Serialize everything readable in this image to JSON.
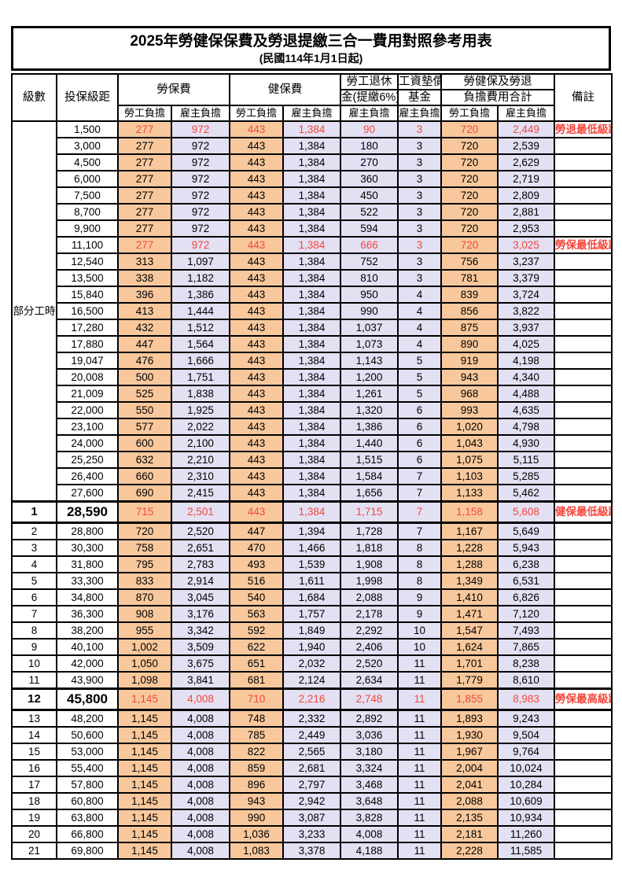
{
  "title": {
    "main": "2025年勞健保保費及勞退提繳三合一費用對照參考用表",
    "sub": "(民國114年1月1日起)"
  },
  "colors": {
    "employee_bg": "#f8c89c",
    "employer_bg": "#e2e0f2",
    "highlight_red": "#f4473c",
    "border": "#000000"
  },
  "table": {
    "headers": {
      "level": "級數",
      "bracket": "投保級距",
      "labor_insurance": "勞保費",
      "health_insurance": "健保費",
      "pension_line1": "勞工退休",
      "pension_line2": "金(提繳6%)",
      "wage_fund_line1": "工資墊償",
      "wage_fund_line2": "基金",
      "total_line1": "勞健保及勞退",
      "total_line2": "負擔費用合計",
      "remark": "備註",
      "employee_label": "勞工負擔",
      "employer_label": "雇主負擔"
    },
    "part_time_label": "部分工時",
    "part_time_rowspan": 23,
    "rows": [
      {
        "level": "",
        "bracket": "1,500",
        "cells": [
          "277",
          "972",
          "443",
          "1,384",
          "90",
          "3",
          "720",
          "2,449"
        ],
        "remark": "勞退最低級距",
        "hl": true
      },
      {
        "level": "",
        "bracket": "3,000",
        "cells": [
          "277",
          "972",
          "443",
          "1,384",
          "180",
          "3",
          "720",
          "2,539"
        ],
        "remark": ""
      },
      {
        "level": "",
        "bracket": "4,500",
        "cells": [
          "277",
          "972",
          "443",
          "1,384",
          "270",
          "3",
          "720",
          "2,629"
        ],
        "remark": ""
      },
      {
        "level": "",
        "bracket": "6,000",
        "cells": [
          "277",
          "972",
          "443",
          "1,384",
          "360",
          "3",
          "720",
          "2,719"
        ],
        "remark": ""
      },
      {
        "level": "",
        "bracket": "7,500",
        "cells": [
          "277",
          "972",
          "443",
          "1,384",
          "450",
          "3",
          "720",
          "2,809"
        ],
        "remark": ""
      },
      {
        "level": "",
        "bracket": "8,700",
        "cells": [
          "277",
          "972",
          "443",
          "1,384",
          "522",
          "3",
          "720",
          "2,881"
        ],
        "remark": ""
      },
      {
        "level": "",
        "bracket": "9,900",
        "cells": [
          "277",
          "972",
          "443",
          "1,384",
          "594",
          "3",
          "720",
          "2,953"
        ],
        "remark": ""
      },
      {
        "level": "",
        "bracket": "11,100",
        "cells": [
          "277",
          "972",
          "443",
          "1,384",
          "666",
          "3",
          "720",
          "3,025"
        ],
        "remark": "勞保最低級距",
        "hl": true
      },
      {
        "level": "",
        "bracket": "12,540",
        "cells": [
          "313",
          "1,097",
          "443",
          "1,384",
          "752",
          "3",
          "756",
          "3,237"
        ],
        "remark": ""
      },
      {
        "level": "",
        "bracket": "13,500",
        "cells": [
          "338",
          "1,182",
          "443",
          "1,384",
          "810",
          "3",
          "781",
          "3,379"
        ],
        "remark": ""
      },
      {
        "level": "",
        "bracket": "15,840",
        "cells": [
          "396",
          "1,386",
          "443",
          "1,384",
          "950",
          "4",
          "839",
          "3,724"
        ],
        "remark": ""
      },
      {
        "level": "",
        "bracket": "16,500",
        "cells": [
          "413",
          "1,444",
          "443",
          "1,384",
          "990",
          "4",
          "856",
          "3,822"
        ],
        "remark": ""
      },
      {
        "level": "",
        "bracket": "17,280",
        "cells": [
          "432",
          "1,512",
          "443",
          "1,384",
          "1,037",
          "4",
          "875",
          "3,937"
        ],
        "remark": ""
      },
      {
        "level": "",
        "bracket": "17,880",
        "cells": [
          "447",
          "1,564",
          "443",
          "1,384",
          "1,073",
          "4",
          "890",
          "4,025"
        ],
        "remark": ""
      },
      {
        "level": "",
        "bracket": "19,047",
        "cells": [
          "476",
          "1,666",
          "443",
          "1,384",
          "1,143",
          "5",
          "919",
          "4,198"
        ],
        "remark": ""
      },
      {
        "level": "",
        "bracket": "20,008",
        "cells": [
          "500",
          "1,751",
          "443",
          "1,384",
          "1,200",
          "5",
          "943",
          "4,340"
        ],
        "remark": ""
      },
      {
        "level": "",
        "bracket": "21,009",
        "cells": [
          "525",
          "1,838",
          "443",
          "1,384",
          "1,261",
          "5",
          "968",
          "4,488"
        ],
        "remark": ""
      },
      {
        "level": "",
        "bracket": "22,000",
        "cells": [
          "550",
          "1,925",
          "443",
          "1,384",
          "1,320",
          "6",
          "993",
          "4,635"
        ],
        "remark": ""
      },
      {
        "level": "",
        "bracket": "23,100",
        "cells": [
          "577",
          "2,022",
          "443",
          "1,384",
          "1,386",
          "6",
          "1,020",
          "4,798"
        ],
        "remark": ""
      },
      {
        "level": "",
        "bracket": "24,000",
        "cells": [
          "600",
          "2,100",
          "443",
          "1,384",
          "1,440",
          "6",
          "1,043",
          "4,930"
        ],
        "remark": ""
      },
      {
        "level": "",
        "bracket": "25,250",
        "cells": [
          "632",
          "2,210",
          "443",
          "1,384",
          "1,515",
          "6",
          "1,075",
          "5,115"
        ],
        "remark": ""
      },
      {
        "level": "",
        "bracket": "26,400",
        "cells": [
          "660",
          "2,310",
          "443",
          "1,384",
          "1,584",
          "7",
          "1,103",
          "5,285"
        ],
        "remark": ""
      },
      {
        "level": "",
        "bracket": "27,600",
        "cells": [
          "690",
          "2,415",
          "443",
          "1,384",
          "1,656",
          "7",
          "1,133",
          "5,462"
        ],
        "remark": ""
      },
      {
        "level": "1",
        "bracket": "28,590",
        "cells": [
          "715",
          "2,501",
          "443",
          "1,384",
          "1,715",
          "7",
          "1,158",
          "5,608"
        ],
        "remark": "健保最低級距",
        "hl": true,
        "key": true
      },
      {
        "level": "2",
        "bracket": "28,800",
        "cells": [
          "720",
          "2,520",
          "447",
          "1,394",
          "1,728",
          "7",
          "1,167",
          "5,649"
        ],
        "remark": ""
      },
      {
        "level": "3",
        "bracket": "30,300",
        "cells": [
          "758",
          "2,651",
          "470",
          "1,466",
          "1,818",
          "8",
          "1,228",
          "5,943"
        ],
        "remark": ""
      },
      {
        "level": "4",
        "bracket": "31,800",
        "cells": [
          "795",
          "2,783",
          "493",
          "1,539",
          "1,908",
          "8",
          "1,288",
          "6,238"
        ],
        "remark": ""
      },
      {
        "level": "5",
        "bracket": "33,300",
        "cells": [
          "833",
          "2,914",
          "516",
          "1,611",
          "1,998",
          "8",
          "1,349",
          "6,531"
        ],
        "remark": ""
      },
      {
        "level": "6",
        "bracket": "34,800",
        "cells": [
          "870",
          "3,045",
          "540",
          "1,684",
          "2,088",
          "9",
          "1,410",
          "6,826"
        ],
        "remark": ""
      },
      {
        "level": "7",
        "bracket": "36,300",
        "cells": [
          "908",
          "3,176",
          "563",
          "1,757",
          "2,178",
          "9",
          "1,471",
          "7,120"
        ],
        "remark": ""
      },
      {
        "level": "8",
        "bracket": "38,200",
        "cells": [
          "955",
          "3,342",
          "592",
          "1,849",
          "2,292",
          "10",
          "1,547",
          "7,493"
        ],
        "remark": ""
      },
      {
        "level": "9",
        "bracket": "40,100",
        "cells": [
          "1,002",
          "3,509",
          "622",
          "1,940",
          "2,406",
          "10",
          "1,624",
          "7,865"
        ],
        "remark": ""
      },
      {
        "level": "10",
        "bracket": "42,000",
        "cells": [
          "1,050",
          "3,675",
          "651",
          "2,032",
          "2,520",
          "11",
          "1,701",
          "8,238"
        ],
        "remark": ""
      },
      {
        "level": "11",
        "bracket": "43,900",
        "cells": [
          "1,098",
          "3,841",
          "681",
          "2,124",
          "2,634",
          "11",
          "1,779",
          "8,610"
        ],
        "remark": ""
      },
      {
        "level": "12",
        "bracket": "45,800",
        "cells": [
          "1,145",
          "4,008",
          "710",
          "2,216",
          "2,748",
          "11",
          "1,855",
          "8,983"
        ],
        "remark": "勞保最高級距",
        "hl": true,
        "key": true
      },
      {
        "level": "13",
        "bracket": "48,200",
        "cells": [
          "1,145",
          "4,008",
          "748",
          "2,332",
          "2,892",
          "11",
          "1,893",
          "9,243"
        ],
        "remark": ""
      },
      {
        "level": "14",
        "bracket": "50,600",
        "cells": [
          "1,145",
          "4,008",
          "785",
          "2,449",
          "3,036",
          "11",
          "1,930",
          "9,504"
        ],
        "remark": ""
      },
      {
        "level": "15",
        "bracket": "53,000",
        "cells": [
          "1,145",
          "4,008",
          "822",
          "2,565",
          "3,180",
          "11",
          "1,967",
          "9,764"
        ],
        "remark": ""
      },
      {
        "level": "16",
        "bracket": "55,400",
        "cells": [
          "1,145",
          "4,008",
          "859",
          "2,681",
          "3,324",
          "11",
          "2,004",
          "10,024"
        ],
        "remark": ""
      },
      {
        "level": "17",
        "bracket": "57,800",
        "cells": [
          "1,145",
          "4,008",
          "896",
          "2,797",
          "3,468",
          "11",
          "2,041",
          "10,284"
        ],
        "remark": ""
      },
      {
        "level": "18",
        "bracket": "60,800",
        "cells": [
          "1,145",
          "4,008",
          "943",
          "2,942",
          "3,648",
          "11",
          "2,088",
          "10,609"
        ],
        "remark": ""
      },
      {
        "level": "19",
        "bracket": "63,800",
        "cells": [
          "1,145",
          "4,008",
          "990",
          "3,087",
          "3,828",
          "11",
          "2,135",
          "10,934"
        ],
        "remark": ""
      },
      {
        "level": "20",
        "bracket": "66,800",
        "cells": [
          "1,145",
          "4,008",
          "1,036",
          "3,233",
          "4,008",
          "11",
          "2,181",
          "11,260"
        ],
        "remark": ""
      },
      {
        "level": "21",
        "bracket": "69,800",
        "cells": [
          "1,145",
          "4,008",
          "1,083",
          "3,378",
          "4,188",
          "11",
          "2,228",
          "11,585"
        ],
        "remark": ""
      }
    ]
  }
}
